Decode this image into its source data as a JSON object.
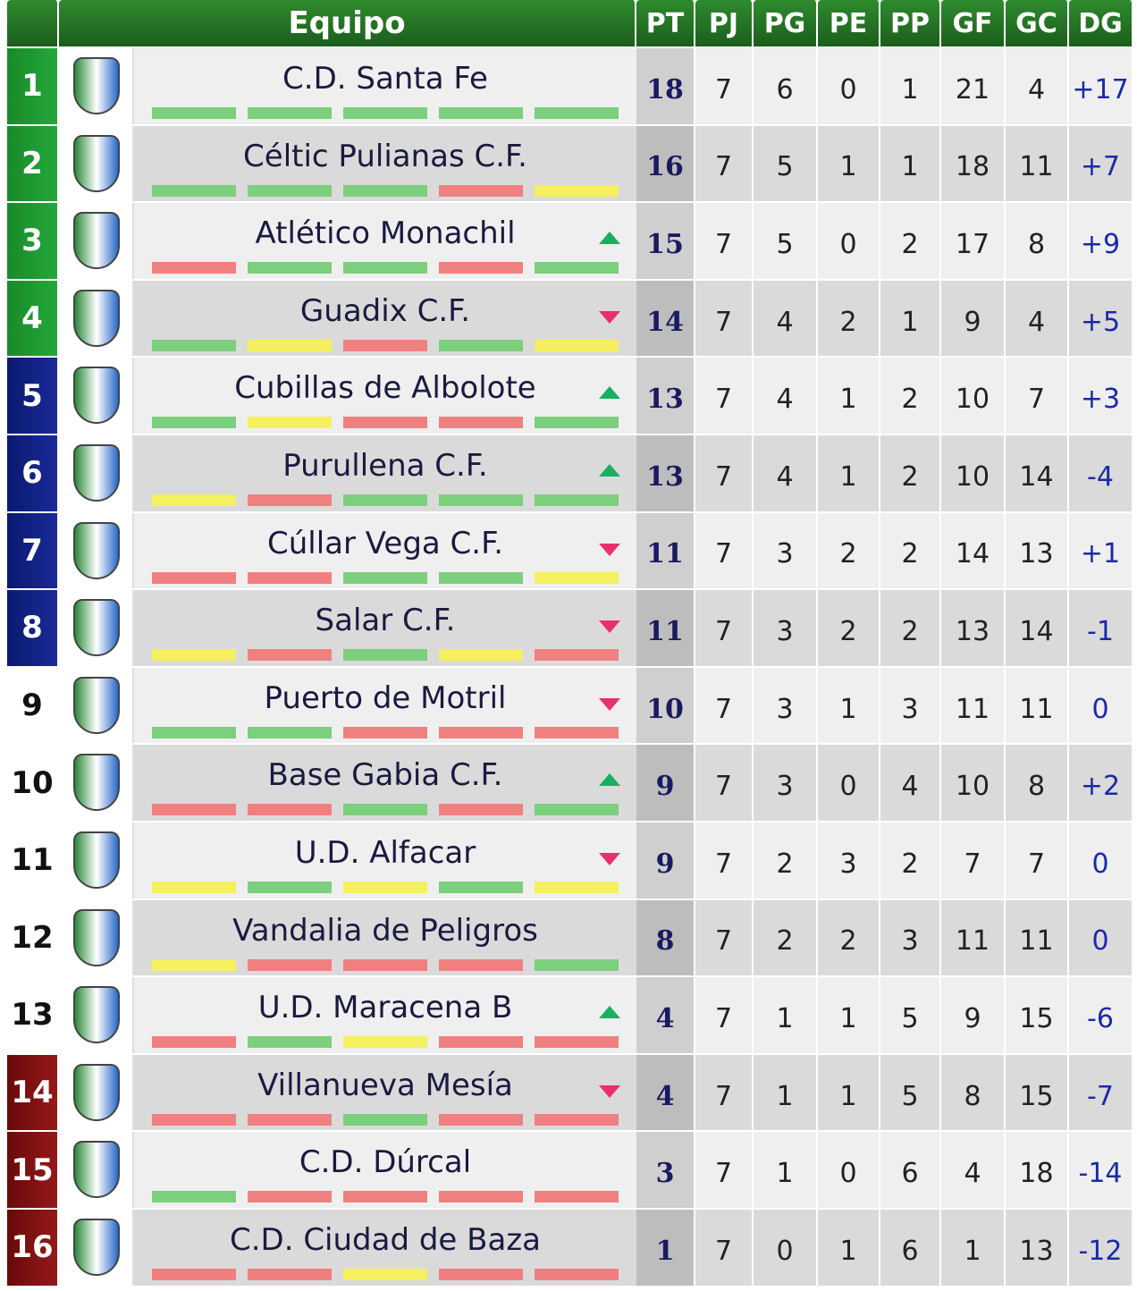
{
  "header": {
    "columns": [
      "Equipo",
      "PT",
      "PJ",
      "PG",
      "PE",
      "PP",
      "GF",
      "GC",
      "DG"
    ]
  },
  "table": {
    "rows": [
      {
        "pos": 1,
        "team": "C.D. Santa Fe",
        "pt": 18,
        "pj": 7,
        "pg": 6,
        "pe": 0,
        "pp": 1,
        "gf": 21,
        "gc": 4,
        "dg": "+17",
        "trend": null,
        "form": [
          "#7ccf7c",
          "#7ccf7c",
          "#7ccf7c",
          "#7ccf7c",
          "#7ccf7c"
        ]
      },
      {
        "pos": 2,
        "team": "Céltic Pulianas C.F.",
        "pt": 16,
        "pj": 7,
        "pg": 5,
        "pe": 1,
        "pp": 1,
        "gf": 18,
        "gc": 11,
        "dg": "+7",
        "trend": null,
        "form": [
          "#7ccf7c",
          "#7ccf7c",
          "#7ccf7c",
          "#f08080",
          "#f5f060"
        ]
      },
      {
        "pos": 3,
        "team": "Atlético Monachil",
        "pt": 15,
        "pj": 7,
        "pg": 5,
        "pe": 0,
        "pp": 2,
        "gf": 17,
        "gc": 8,
        "dg": "+9",
        "trend": "up",
        "form": [
          "#f08080",
          "#7ccf7c",
          "#7ccf7c",
          "#f08080",
          "#7ccf7c"
        ]
      },
      {
        "pos": 4,
        "team": "Guadix C.F.",
        "pt": 14,
        "pj": 7,
        "pg": 4,
        "pe": 2,
        "pp": 1,
        "gf": 9,
        "gc": 4,
        "dg": "+5",
        "trend": "down",
        "form": [
          "#7ccf7c",
          "#f5f060",
          "#f08080",
          "#7ccf7c",
          "#f5f060"
        ]
      },
      {
        "pos": 5,
        "team": "Cubillas de Albolote",
        "pt": 13,
        "pj": 7,
        "pg": 4,
        "pe": 1,
        "pp": 2,
        "gf": 10,
        "gc": 7,
        "dg": "+3",
        "trend": "up",
        "form": [
          "#7ccf7c",
          "#f5f060",
          "#f08080",
          "#f08080",
          "#7ccf7c"
        ]
      },
      {
        "pos": 6,
        "team": "Purullena C.F.",
        "pt": 13,
        "pj": 7,
        "pg": 4,
        "pe": 1,
        "pp": 2,
        "gf": 10,
        "gc": 14,
        "dg": "-4",
        "trend": "up",
        "form": [
          "#f5f060",
          "#f08080",
          "#7ccf7c",
          "#7ccf7c",
          "#7ccf7c"
        ]
      },
      {
        "pos": 7,
        "team": "Cúllar Vega C.F.",
        "pt": 11,
        "pj": 7,
        "pg": 3,
        "pe": 2,
        "pp": 2,
        "gf": 14,
        "gc": 13,
        "dg": "+1",
        "trend": "down",
        "form": [
          "#f08080",
          "#f08080",
          "#7ccf7c",
          "#7ccf7c",
          "#f5f060"
        ]
      },
      {
        "pos": 8,
        "team": "Salar C.F.",
        "pt": 11,
        "pj": 7,
        "pg": 3,
        "pe": 2,
        "pp": 2,
        "gf": 13,
        "gc": 14,
        "dg": "-1",
        "trend": "down",
        "form": [
          "#f5f060",
          "#f08080",
          "#7ccf7c",
          "#f5f060",
          "#f08080"
        ]
      },
      {
        "pos": 9,
        "team": "Puerto de Motril",
        "pt": 10,
        "pj": 7,
        "pg": 3,
        "pe": 1,
        "pp": 3,
        "gf": 11,
        "gc": 11,
        "dg": "0",
        "trend": "down",
        "form": [
          "#7ccf7c",
          "#7ccf7c",
          "#f08080",
          "#f08080",
          "#f08080"
        ]
      },
      {
        "pos": 10,
        "team": "Base Gabia C.F.",
        "pt": 9,
        "pj": 7,
        "pg": 3,
        "pe": 0,
        "pp": 4,
        "gf": 10,
        "gc": 8,
        "dg": "+2",
        "trend": "up",
        "form": [
          "#f08080",
          "#f08080",
          "#7ccf7c",
          "#f08080",
          "#7ccf7c"
        ]
      },
      {
        "pos": 11,
        "team": "U.D. Alfacar",
        "pt": 9,
        "pj": 7,
        "pg": 2,
        "pe": 3,
        "pp": 2,
        "gf": 7,
        "gc": 7,
        "dg": "0",
        "trend": "down",
        "form": [
          "#f5f060",
          "#7ccf7c",
          "#f5f060",
          "#7ccf7c",
          "#f5f060"
        ]
      },
      {
        "pos": 12,
        "team": "Vandalia de Peligros",
        "pt": 8,
        "pj": 7,
        "pg": 2,
        "pe": 2,
        "pp": 3,
        "gf": 11,
        "gc": 11,
        "dg": "0",
        "trend": null,
        "form": [
          "#f5f060",
          "#f08080",
          "#f08080",
          "#f08080",
          "#7ccf7c"
        ]
      },
      {
        "pos": 13,
        "team": "U.D. Maracena B",
        "pt": 4,
        "pj": 7,
        "pg": 1,
        "pe": 1,
        "pp": 5,
        "gf": 9,
        "gc": 15,
        "dg": "-6",
        "trend": "up",
        "form": [
          "#f08080",
          "#7ccf7c",
          "#f5f060",
          "#f08080",
          "#f08080"
        ]
      },
      {
        "pos": 14,
        "team": "Villanueva Mesía",
        "pt": 4,
        "pj": 7,
        "pg": 1,
        "pe": 1,
        "pp": 5,
        "gf": 8,
        "gc": 15,
        "dg": "-7",
        "trend": "down",
        "form": [
          "#f08080",
          "#f08080",
          "#7ccf7c",
          "#f08080",
          "#f08080"
        ]
      },
      {
        "pos": 15,
        "team": "C.D. Dúrcal",
        "pt": 3,
        "pj": 7,
        "pg": 1,
        "pe": 0,
        "pp": 6,
        "gf": 4,
        "gc": 18,
        "dg": "-14",
        "trend": null,
        "form": [
          "#7ccf7c",
          "#f08080",
          "#f08080",
          "#f08080",
          "#f08080"
        ]
      },
      {
        "pos": 16,
        "team": "C.D. Ciudad de Baza",
        "pt": 1,
        "pj": 7,
        "pg": 0,
        "pe": 1,
        "pp": 6,
        "gf": 1,
        "gc": 13,
        "dg": "-12",
        "trend": null,
        "form": [
          "#f08080",
          "#f08080",
          "#f5f060",
          "#f08080",
          "#f08080"
        ]
      }
    ]
  }
}
